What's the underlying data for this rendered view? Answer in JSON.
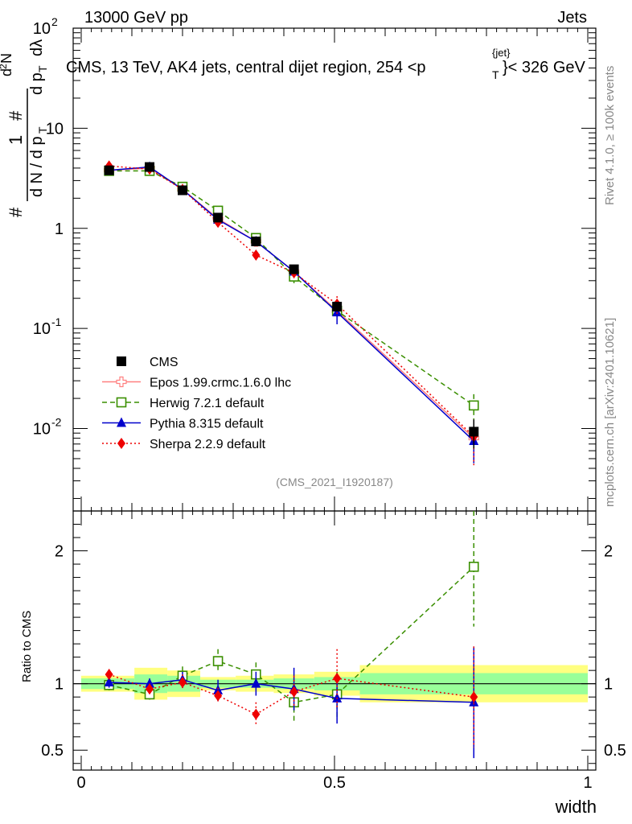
{
  "header": {
    "left": "13000 GeV pp",
    "right": "Jets",
    "title_main": "CMS, 13 TeV, AK4 jets, central dijet region, 254 <p",
    "title_sub": "T",
    "title_sup": "{jet}",
    "title_end": "}< 326 GeV"
  },
  "side_text": {
    "rivet": "Rivet 4.1.0, ≥ 100k events",
    "mcplots": "mcplots.cern.ch [arXiv:2401.10621]"
  },
  "watermark": "(CMS_2021_I1920187)",
  "colors": {
    "cms": "#000000",
    "epos": "#ff8080",
    "herwig": "#3a8f00",
    "pythia": "#0000cc",
    "sherpa": "#ee0000",
    "band_inner": "#99ff99",
    "band_outer": "#ffff80"
  },
  "chart_data": [
    {
      "type": "line",
      "scale": "log",
      "title": "CMS, 13 TeV, AK4 jets, central dijet region, 254 <pT{jet}< 326 GeV",
      "ylabel": "1/dN/dpT d²N/dpT dλ",
      "xlim": [
        0,
        1
      ],
      "ylim": [
        0.0015,
        100
      ],
      "y_ticks": [
        {
          "value": 0.01,
          "label": "10",
          "exp": "-2"
        },
        {
          "value": 0.1,
          "label": "10",
          "exp": "-1"
        },
        {
          "value": 1,
          "label": "1",
          "exp": ""
        },
        {
          "value": 10,
          "label": "10",
          "exp": ""
        },
        {
          "value": 100,
          "label": "10",
          "exp": "2"
        }
      ],
      "x": [
        0.055,
        0.135,
        0.2,
        0.27,
        0.345,
        0.42,
        0.505,
        0.775
      ],
      "series": [
        {
          "name": "CMS",
          "values": [
            3.8,
            4.1,
            2.4,
            1.28,
            0.74,
            0.39,
            0.165,
            0.0093
          ],
          "err": [
            0.2,
            0.25,
            0.15,
            0.08,
            0.05,
            0.03,
            0.015,
            0.003
          ]
        },
        {
          "name": "Epos 1.99.crmc.1.6.0 lhc",
          "values": [
            3.8,
            4.0,
            2.45,
            1.25,
            0.74,
            0.37,
            0.15,
            0.008
          ],
          "err": [
            0,
            0,
            0,
            0,
            0,
            0,
            0,
            0
          ]
        },
        {
          "name": "Herwig 7.2.1 default",
          "values": [
            3.75,
            3.75,
            2.6,
            1.5,
            0.8,
            0.33,
            0.15,
            0.017
          ],
          "err": [
            0.15,
            0.15,
            0.12,
            0.09,
            0.06,
            0.05,
            0.025,
            0.005
          ]
        },
        {
          "name": "Pythia 8.315 default",
          "values": [
            3.8,
            4.1,
            2.45,
            1.22,
            0.74,
            0.37,
            0.145,
            0.0075
          ],
          "err": [
            0.15,
            0.15,
            0.1,
            0.08,
            0.06,
            0.05,
            0.035,
            0.003
          ]
        },
        {
          "name": "Sherpa 2.2.9 default",
          "values": [
            4.2,
            3.9,
            2.45,
            1.15,
            0.54,
            0.36,
            0.175,
            0.0083
          ],
          "err": [
            0.15,
            0.15,
            0.1,
            0.08,
            0.05,
            0.05,
            0.035,
            0.004
          ]
        }
      ]
    },
    {
      "type": "line",
      "scale": "linear",
      "ylabel": "Ratio to CMS",
      "xlabel": "width",
      "xlim": [
        0,
        1
      ],
      "ylim": [
        0.35,
        2.3
      ],
      "y_ticks": [
        0.5,
        1,
        2
      ],
      "y_tick_labels": [
        "0.5",
        "1",
        "2"
      ],
      "x_ticks": [
        0,
        0.5,
        1
      ],
      "x_tick_labels": [
        "0",
        "0.5",
        "1"
      ],
      "bins": [
        {
          "lo": 0.0,
          "hi": 0.105,
          "inner": 0.04,
          "outer": 0.06
        },
        {
          "lo": 0.105,
          "hi": 0.17,
          "inner": 0.07,
          "outer": 0.12
        },
        {
          "lo": 0.17,
          "hi": 0.235,
          "inner": 0.06,
          "outer": 0.1
        },
        {
          "lo": 0.235,
          "hi": 0.305,
          "inner": 0.03,
          "outer": 0.05
        },
        {
          "lo": 0.305,
          "hi": 0.38,
          "inner": 0.03,
          "outer": 0.06
        },
        {
          "lo": 0.38,
          "hi": 0.46,
          "inner": 0.04,
          "outer": 0.07
        },
        {
          "lo": 0.46,
          "hi": 0.55,
          "inner": 0.05,
          "outer": 0.09
        },
        {
          "lo": 0.55,
          "hi": 1.0,
          "inner": 0.08,
          "outer": 0.14
        }
      ],
      "x": [
        0.055,
        0.135,
        0.2,
        0.27,
        0.345,
        0.42,
        0.505,
        0.775
      ],
      "series": [
        {
          "name": "Herwig 7.2.1 default",
          "values": [
            0.99,
            0.92,
            1.06,
            1.17,
            1.07,
            0.86,
            0.92,
            1.88
          ],
          "err": [
            0.04,
            0.04,
            0.07,
            0.09,
            0.09,
            0.14,
            0.17,
            0.45
          ]
        },
        {
          "name": "Pythia 8.315 default",
          "values": [
            1.01,
            1.0,
            1.03,
            0.95,
            1.0,
            0.96,
            0.89,
            0.86
          ],
          "err": [
            0.04,
            0.04,
            0.06,
            0.08,
            0.09,
            0.16,
            0.19,
            0.42
          ]
        },
        {
          "name": "Sherpa 2.2.9 default",
          "values": [
            1.07,
            0.96,
            1.01,
            0.91,
            0.77,
            0.94,
            1.04,
            0.9
          ],
          "err": [
            0.04,
            0.04,
            0.06,
            0.06,
            0.09,
            0.12,
            0.22,
            0.38
          ]
        }
      ]
    }
  ],
  "legend": [
    {
      "name": "CMS",
      "marker": "filled-square",
      "color": "#000000"
    },
    {
      "name": "Epos 1.99.crmc.1.6.0 lhc",
      "marker": "open-cross",
      "color": "#ff8080"
    },
    {
      "name": "Herwig 7.2.1 default",
      "marker": "open-square",
      "color": "#3a8f00"
    },
    {
      "name": "Pythia 8.315 default",
      "marker": "filled-triangle",
      "color": "#0000cc"
    },
    {
      "name": "Sherpa 2.2.9 default",
      "marker": "filled-diamond",
      "color": "#ee0000"
    }
  ]
}
